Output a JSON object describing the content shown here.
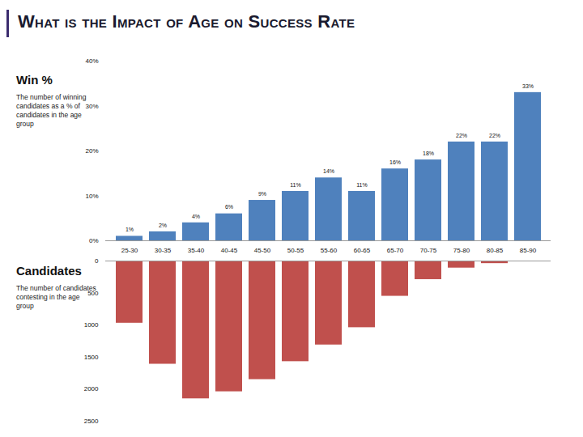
{
  "title": "What is the Impact of Age on Success Rate",
  "chart_data": [
    {
      "type": "bar",
      "title": "Win %",
      "subtitle": "The number of winning candidates as a % of candidates in the age group",
      "categories": [
        "25-30",
        "30-35",
        "35-40",
        "40-45",
        "45-50",
        "50-55",
        "55-60",
        "60-65",
        "65-70",
        "70-75",
        "75-80",
        "80-85",
        "85-90"
      ],
      "values": [
        1,
        2,
        4,
        6,
        9,
        11,
        14,
        11,
        16,
        18,
        22,
        22,
        33
      ],
      "value_labels": [
        "1%",
        "2%",
        "4%",
        "6%",
        "9%",
        "11%",
        "14%",
        "11%",
        "16%",
        "18%",
        "22%",
        "22%",
        "33%"
      ],
      "color": "#4f81bd",
      "ylim": [
        0,
        40
      ],
      "yticks": [
        {
          "value": 0,
          "label": "0%"
        },
        {
          "value": 10,
          "label": "10%"
        },
        {
          "value": 20,
          "label": "20%"
        },
        {
          "value": 30,
          "label": "30%"
        },
        {
          "value": 40,
          "label": "40%"
        }
      ],
      "data_labels": true
    },
    {
      "type": "bar",
      "title": "Candidates",
      "subtitle": "The number of candidates contesting in the age group",
      "categories": [
        "25-30",
        "30-35",
        "35-40",
        "40-45",
        "45-50",
        "50-55",
        "55-60",
        "60-65",
        "65-70",
        "70-75",
        "75-80",
        "80-85",
        "85-90"
      ],
      "values": [
        970,
        1610,
        2150,
        2040,
        1850,
        1570,
        1310,
        1040,
        550,
        290,
        110,
        40,
        8
      ],
      "color": "#c0504d",
      "ylim": [
        2500,
        0
      ],
      "yticks": [
        0,
        500,
        1000,
        1500,
        2000,
        2500
      ],
      "tick_labels": "y"
    }
  ]
}
